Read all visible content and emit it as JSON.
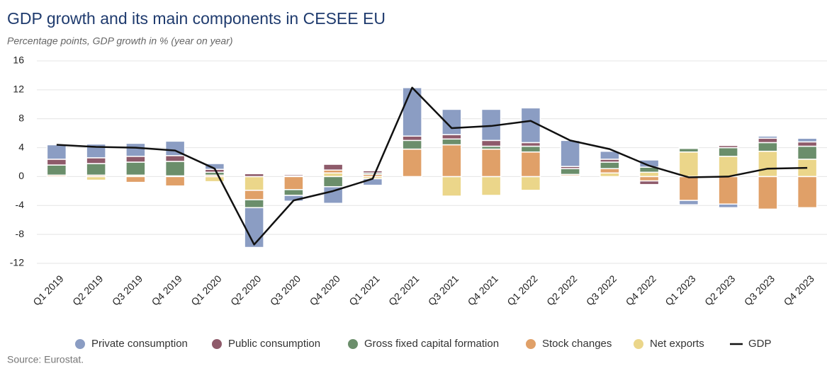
{
  "chart_data": {
    "type": "bar",
    "stacked": true,
    "title": "GDP growth and its main components in CESEE EU",
    "subtitle": "Percentage points, GDP growth in % (year on year)",
    "source": "Source: Eurostat.",
    "categories": [
      "Q1 2019",
      "Q2 2019",
      "Q3 2019",
      "Q4 2019",
      "Q1 2020",
      "Q2 2020",
      "Q3 2020",
      "Q4 2020",
      "Q1 2021",
      "Q2 2021",
      "Q3 2021",
      "Q4 2021",
      "Q1 2022",
      "Q2 2022",
      "Q3 2022",
      "Q4 2022",
      "Q1 2023",
      "Q2 2023",
      "Q3 2023",
      "Q4 2023"
    ],
    "series": [
      {
        "name": "Private consumption",
        "color": "#8b9dc3",
        "values": [
          2.0,
          1.9,
          1.8,
          2.0,
          0.8,
          -5.5,
          -0.8,
          -2.3,
          -0.9,
          6.7,
          3.5,
          4.3,
          4.8,
          3.6,
          1.1,
          1.0,
          -0.6,
          -0.5,
          0.3,
          0.5
        ]
      },
      {
        "name": "Public consumption",
        "color": "#8e5a6a",
        "values": [
          0.8,
          0.8,
          0.8,
          0.8,
          0.4,
          0.4,
          0.2,
          0.8,
          0.3,
          0.6,
          0.6,
          0.8,
          0.5,
          0.3,
          0.4,
          -0.5,
          0.1,
          0.3,
          0.6,
          0.6
        ]
      },
      {
        "name": "Gross fixed capital formation",
        "color": "#6b8e6b",
        "values": [
          1.4,
          1.6,
          1.8,
          2.0,
          0.4,
          -1.1,
          -0.8,
          -1.4,
          0.2,
          1.2,
          0.8,
          0.4,
          0.8,
          0.8,
          0.9,
          0.7,
          0.5,
          1.2,
          1.2,
          1.8
        ]
      },
      {
        "name": "Stock changes",
        "color": "#e0a068",
        "values": [
          0.2,
          0.2,
          -0.8,
          -1.3,
          0.2,
          -1.3,
          -1.8,
          0.4,
          0.3,
          3.8,
          4.4,
          3.8,
          3.4,
          0.2,
          0.6,
          -0.6,
          -3.3,
          -3.8,
          -4.5,
          -4.3
        ]
      },
      {
        "name": "Net exports",
        "color": "#ebd68a",
        "values": [
          0.0,
          -0.5,
          0.2,
          0.1,
          -0.7,
          -1.9,
          0.1,
          0.5,
          -0.3,
          0.0,
          -2.7,
          -2.6,
          -1.9,
          0.1,
          0.5,
          0.6,
          3.4,
          2.8,
          3.5,
          2.4
        ]
      },
      {
        "name": "GDP",
        "color": "#111111",
        "type": "line",
        "values": [
          4.4,
          4.1,
          4.0,
          3.6,
          1.1,
          -9.4,
          -3.3,
          -2.0,
          -0.3,
          12.3,
          6.7,
          7.0,
          7.7,
          5.0,
          3.8,
          1.5,
          -0.1,
          0.0,
          1.1,
          1.2
        ]
      }
    ],
    "ylim": [
      -14,
      16
    ],
    "yticks": [
      -12,
      -8,
      -4,
      0,
      4,
      8,
      12,
      16
    ],
    "grid": true
  }
}
